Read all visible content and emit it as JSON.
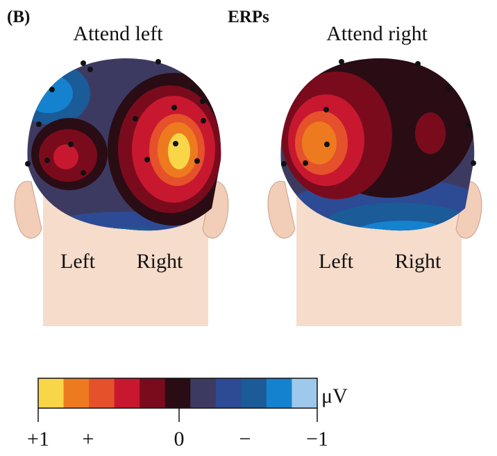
{
  "panel_label": "(B)",
  "title": "ERPs",
  "heads": [
    {
      "title": "Attend left",
      "left": "Left",
      "right": "Right"
    },
    {
      "title": "Attend right",
      "left": "Left",
      "right": "Right"
    }
  ],
  "colorbar": {
    "unit": "μV",
    "colors": [
      "#f9d648",
      "#ee7a1f",
      "#e5512b",
      "#c8182f",
      "#7a0b1d",
      "#2a0c14",
      "#3d3a62",
      "#2d4a94",
      "#1a5b98",
      "#1582d0",
      "#9ec8ec"
    ],
    "labels": [
      "+1",
      "+",
      "0",
      "−",
      "−1"
    ]
  }
}
